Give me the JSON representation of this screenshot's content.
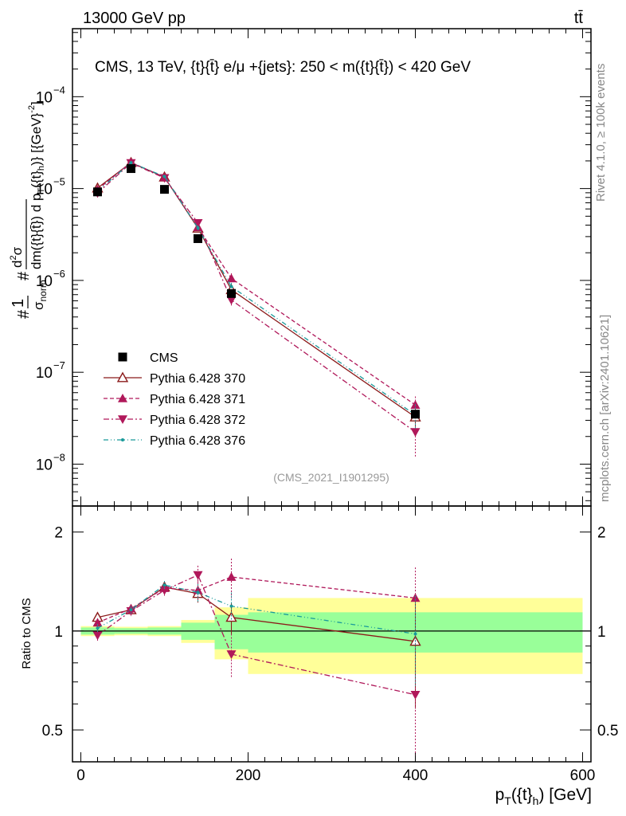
{
  "header": {
    "left": "13000 GeV pp",
    "right": "tt̄"
  },
  "side_text": {
    "rivet": "Rivet 4.1.0, ≥ 100k events",
    "mcplots": "mcplots.cern.ch [arXiv:2401.10621]"
  },
  "chart_data": {
    "type": "scatter",
    "title": "CMS, 13 TeV, {t}{t̄} e/μ +{jets}: 250 < m({t}{t̄}) < 420 GeV",
    "watermark": "(CMS_2021_I1901295)",
    "xlabel": "p_T({t}_h) [GeV]",
    "ylabel_top": "#1/σ_norm #d²σ/dm({t}{t̄}) d p_T({t}_h)} [{GeV}^-2]",
    "ylabel_bottom": "Ratio to CMS",
    "xlim": [
      -10,
      610
    ],
    "ylim_top": [
      3.5e-09,
      0.00055
    ],
    "ylim_bottom": [
      0.4,
      2.4
    ],
    "x_ticks": [
      "0",
      "200",
      "400",
      "600"
    ],
    "y_ticks_top": [
      "10^-8",
      "10^-7",
      "10^-6",
      "10^-5",
      "10^-4"
    ],
    "y_ticks_bottom": [
      "0.5",
      "1",
      "2"
    ],
    "bin_edges": [
      0,
      40,
      80,
      120,
      160,
      200,
      600
    ],
    "bin_centers": [
      20,
      60,
      100,
      140,
      180,
      400
    ],
    "data": {
      "name": "CMS",
      "values": [
        9.2e-06,
        1.65e-05,
        9.8e-06,
        2.85e-06,
        7.2e-07,
        3.5e-08
      ],
      "band_inner": [
        0.025,
        0.02,
        0.025,
        0.06,
        0.12,
        0.14
      ],
      "band_outer": [
        0.035,
        0.03,
        0.035,
        0.08,
        0.18,
        0.26
      ]
    },
    "series": [
      {
        "name": "Pythia 6.428 370",
        "color": "#8b1a1a",
        "marker": "open-triangle-up",
        "dash": "solid",
        "ratio": [
          1.1,
          1.16,
          1.36,
          1.3,
          1.1,
          0.93
        ],
        "ratio_err": [
          0.03,
          0.03,
          0.04,
          0.08,
          0.12,
          0.35
        ]
      },
      {
        "name": "Pythia 6.428 371",
        "color": "#b0185a",
        "marker": "filled-triangle-up",
        "dash": "5,3",
        "ratio": [
          1.06,
          1.17,
          1.35,
          1.33,
          1.46,
          1.26
        ],
        "ratio_err": [
          0.03,
          0.03,
          0.04,
          0.1,
          0.2,
          0.3
        ]
      },
      {
        "name": "Pythia 6.428 372",
        "color": "#b0185a",
        "marker": "filled-triangle-down",
        "dash": "7,3,2,3",
        "ratio": [
          0.97,
          1.15,
          1.33,
          1.48,
          0.85,
          0.64
        ],
        "ratio_err": [
          0.04,
          0.04,
          0.05,
          0.1,
          0.13,
          0.3
        ]
      },
      {
        "name": "Pythia 6.428 376",
        "color": "#1a9a9a",
        "marker": "dot",
        "dash": "6,3,1,3,1,3",
        "ratio": [
          1.02,
          1.16,
          1.38,
          1.31,
          1.19,
          0.98
        ],
        "ratio_err": [
          0.03,
          0.03,
          0.04,
          0.08,
          0.12,
          0.3
        ]
      }
    ]
  }
}
